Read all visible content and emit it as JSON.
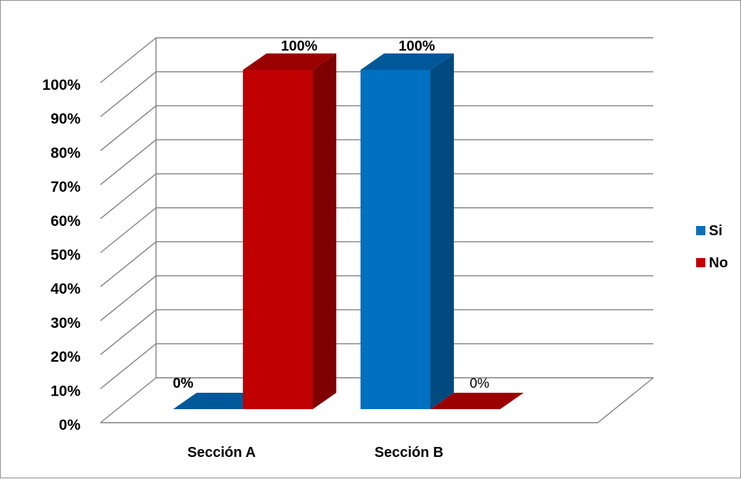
{
  "chart_data": {
    "type": "bar",
    "subtype": "3d-clustered-column",
    "categories": [
      "Sección A",
      "Sección B"
    ],
    "series": [
      {
        "name": "Si",
        "values": [
          0,
          100
        ],
        "color": "#0070c0",
        "side_color": "#004a7f",
        "top_color": "#00589a"
      },
      {
        "name": "No",
        "values": [
          100,
          0
        ],
        "color": "#c00000",
        "side_color": "#7f0000",
        "top_color": "#9b0000"
      }
    ],
    "data_labels": [
      [
        "0%",
        "100%"
      ],
      [
        "100%",
        "0%"
      ]
    ],
    "data_label_bold": [
      [
        true,
        true
      ],
      [
        true,
        false
      ]
    ],
    "y_ticks": [
      "0%",
      "10%",
      "20%",
      "30%",
      "40%",
      "50%",
      "60%",
      "70%",
      "80%",
      "90%",
      "100%"
    ],
    "ylim": [
      0,
      100
    ],
    "grid": true,
    "legend_position": "right",
    "title": "",
    "xlabel": "",
    "ylabel": ""
  }
}
